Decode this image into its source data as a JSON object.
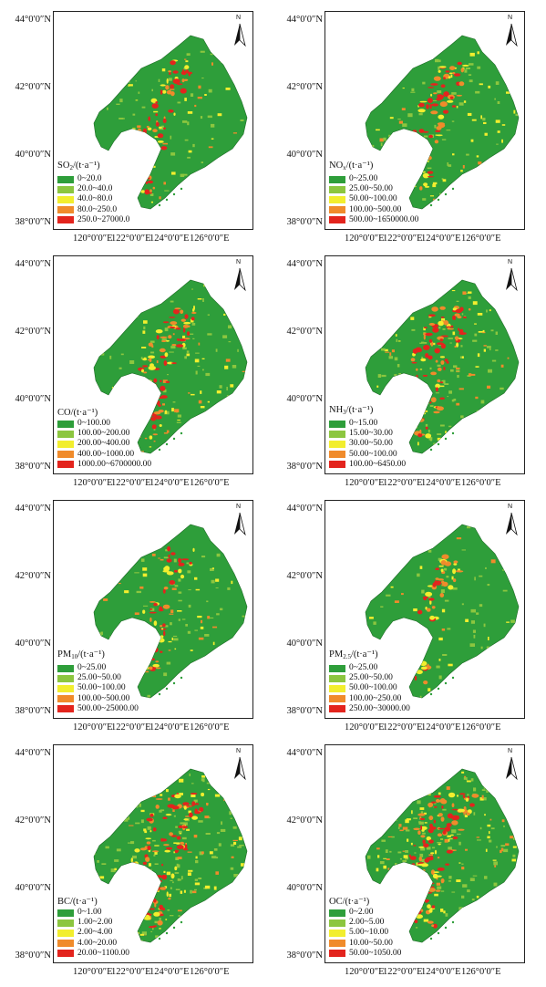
{
  "lat_labels": [
    "44°0′0″N",
    "42°0′0″N",
    "40°0′0″N",
    "38°0′0″N"
  ],
  "lon_labels": [
    "120°0′0″E",
    "122°0′0″E",
    "124°0′0″E",
    "126°0′0″E"
  ],
  "north_label": "N",
  "colors": {
    "c1": "#2e9e3a",
    "c2": "#8cc63f",
    "c3": "#f2ee2e",
    "c4": "#f08b2b",
    "c5": "#e3241d"
  },
  "panels": [
    {
      "title_main": "SO",
      "title_sub": "2",
      "title_rest": "/(t·a⁻¹)",
      "classes": [
        "0~20.0",
        "20.0~40.0",
        "40.0~80.0",
        "80.0~250.0",
        "250.0~27000.0"
      ]
    },
    {
      "title_main": "NO",
      "title_sub": "x",
      "title_rest": "/(t·a⁻¹)",
      "classes": [
        "0~25.00",
        "25.00~50.00",
        "50.00~100.00",
        "100.00~500.00",
        "500.00~1650000.00"
      ]
    },
    {
      "title_main": "CO",
      "title_sub": "",
      "title_rest": "/(t·a⁻¹)",
      "classes": [
        "0~100.00",
        "100.00~200.00",
        "200.00~400.00",
        "400.00~1000.00",
        "1000.00~6700000.00"
      ]
    },
    {
      "title_main": "NH",
      "title_sub": "3",
      "title_rest": "/(t·a⁻¹)",
      "classes": [
        "0~15.00",
        "15.00~30.00",
        "30.00~50.00",
        "50.00~100.00",
        "100.00~6450.00"
      ]
    },
    {
      "title_main": "PM",
      "title_sub": "10",
      "title_rest": "/(t·a⁻¹)",
      "classes": [
        "0~25.00",
        "25.00~50.00",
        "50.00~100.00",
        "100.00~500.00",
        "500.00~25000.00"
      ]
    },
    {
      "title_main": "PM",
      "title_sub": "2.5",
      "title_rest": "/(t·a⁻¹)",
      "classes": [
        "0~25.00",
        "25.00~50.00",
        "50.00~100.00",
        "100.00~250.00",
        "250.00~30000.00"
      ]
    },
    {
      "title_main": "BC",
      "title_sub": "",
      "title_rest": "/(t·a⁻¹)",
      "classes": [
        "0~1.00",
        "1.00~2.00",
        "2.00~4.00",
        "4.00~20.00",
        "20.00~1100.00"
      ]
    },
    {
      "title_main": "OC",
      "title_sub": "",
      "title_rest": "/(t·a⁻¹)",
      "classes": [
        "0~2.00",
        "2.00~5.00",
        "5.00~10.00",
        "10.00~50.00",
        "50.00~1050.00"
      ]
    }
  ],
  "intensity_levels": [
    0.35,
    0.45,
    0.55,
    0.75,
    0.3,
    0.3,
    1.0,
    0.95
  ]
}
